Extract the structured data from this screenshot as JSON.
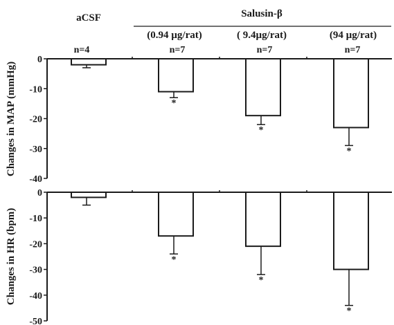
{
  "chart_data": [
    {
      "type": "bar",
      "categories": [
        "aCSF",
        "(0.94 µg/rat)",
        "( 9.4µg/rat)",
        "(94 µg/rat)"
      ],
      "values": [
        -2,
        -11,
        -19,
        -23
      ],
      "error": [
        1,
        2,
        3,
        6
      ],
      "n_labels": [
        "n=4",
        "n=7",
        "n=7",
        "n=7"
      ],
      "significance": [
        "",
        "*",
        "*",
        "*"
      ],
      "ylabel": "Changes in MAP (mmHg)",
      "ylim": [
        -40,
        0
      ],
      "yticks": [
        "0",
        "-10",
        "-20",
        "-30",
        "-40"
      ],
      "grid": false
    },
    {
      "type": "bar",
      "categories": [
        "aCSF",
        "(0.94 µg/rat)",
        "( 9.4µg/rat)",
        "(94 µg/rat)"
      ],
      "values": [
        -2,
        -17,
        -21,
        -30
      ],
      "error": [
        3,
        7,
        11,
        14
      ],
      "significance": [
        "",
        "*",
        "*",
        "*"
      ],
      "ylabel": "Changes in HR (bpm)",
      "ylim": [
        -50,
        0
      ],
      "yticks": [
        "0",
        "-10",
        "-20",
        "-30",
        "-40",
        "-50"
      ],
      "grid": false
    }
  ],
  "header": {
    "control_label": "aCSF",
    "group_label": "Salusin-β"
  }
}
